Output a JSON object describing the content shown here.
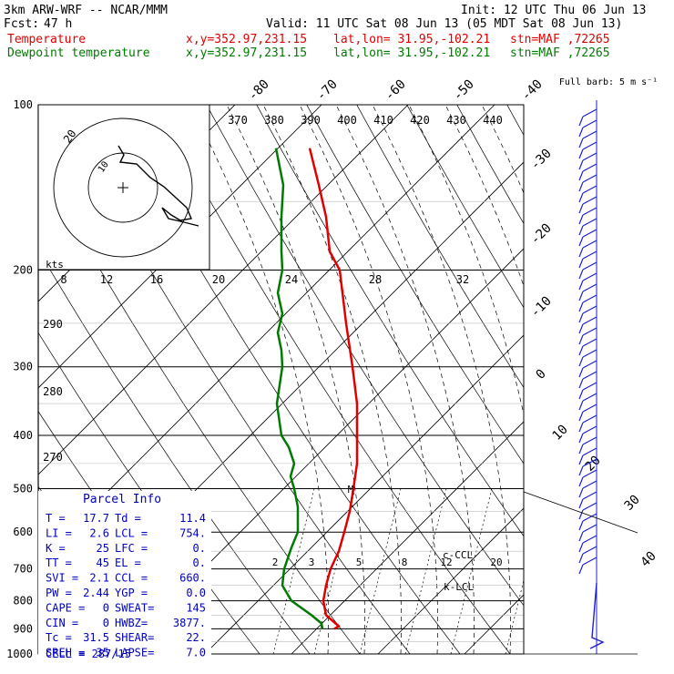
{
  "header": {
    "model": "3km ARW-WRF -- NCAR/MMM",
    "init": "Init: 12 UTC Thu 06 Jun 13",
    "fcst_label": "Fcst:",
    "fcst_value": "47 h",
    "valid": "Valid: 11 UTC Sat 08 Jun 13 (05 MDT Sat 08 Jun 13)",
    "temp_label": "Temperature",
    "dew_label": "Dewpoint temperature",
    "xy": "x,y=352.97,231.15",
    "latlon": "lat,lon= 31.95,-102.21",
    "stn": "stn=MAF ,72265"
  },
  "colors": {
    "temperature": "#e00000",
    "dewpoint": "#007a00",
    "barbs": "#2020d0",
    "grid": "#000000"
  },
  "chart_data": {
    "type": "line",
    "pressure_levels": [
      100,
      200,
      300,
      400,
      500,
      600,
      700,
      800,
      900,
      1000
    ],
    "theta_labels": [
      "370",
      "380",
      "390",
      "400",
      "410",
      "420",
      "430",
      "440"
    ],
    "isotherm_top_labels": [
      "-80",
      "-70",
      "-60",
      "-50",
      "-40"
    ],
    "isotherm_right_labels": [
      "-30",
      "-20",
      "-10",
      "0",
      "10",
      "20",
      "30",
      "40"
    ],
    "mixing_ratio_labels": [
      "2",
      "3",
      "5",
      "8",
      "12",
      "20"
    ],
    "hodograph": {
      "units_label": "kts",
      "ring_label": "20",
      "axis_labels": [
        "8",
        "12",
        "16",
        "20",
        "24",
        "28",
        "32"
      ]
    },
    "theta_left_labels": [
      "290",
      "280",
      "270"
    ],
    "barb_label": "Full barb: 5 m s⁻¹",
    "markers": {
      "lcl": "k-LCL",
      "ccl": "c-CCL",
      "m": "M"
    },
    "series": [
      {
        "name": "Temperature",
        "points": [
          [
            120,
            340
          ],
          [
            140,
            350
          ],
          [
            160,
            358
          ],
          [
            185,
            362
          ],
          [
            200,
            373
          ],
          [
            250,
            380
          ],
          [
            300,
            387
          ],
          [
            350,
            392
          ],
          [
            400,
            392
          ],
          [
            450,
            392
          ],
          [
            500,
            388
          ],
          [
            550,
            384
          ],
          [
            600,
            378
          ],
          [
            650,
            372
          ],
          [
            700,
            363
          ],
          [
            750,
            358
          ],
          [
            800,
            355
          ],
          [
            850,
            358
          ],
          [
            870,
            365
          ],
          [
            890,
            372
          ],
          [
            900,
            367
          ]
        ]
      },
      {
        "name": "Dewpoint temperature",
        "points": [
          [
            120,
            303
          ],
          [
            140,
            311
          ],
          [
            160,
            309
          ],
          [
            185,
            309
          ],
          [
            200,
            310
          ],
          [
            220,
            305
          ],
          [
            240,
            310
          ],
          [
            260,
            305
          ],
          [
            280,
            309
          ],
          [
            300,
            310
          ],
          [
            350,
            304
          ],
          [
            400,
            309
          ],
          [
            420,
            317
          ],
          [
            450,
            323
          ],
          [
            475,
            319
          ],
          [
            500,
            323
          ],
          [
            540,
            327
          ],
          [
            580,
            327
          ],
          [
            600,
            327
          ],
          [
            640,
            320
          ],
          [
            700,
            312
          ],
          [
            750,
            310
          ],
          [
            800,
            320
          ],
          [
            850,
            342
          ],
          [
            880,
            353
          ],
          [
            900,
            354
          ]
        ]
      }
    ]
  },
  "parcel_info": {
    "title": "Parcel Info",
    "rows": [
      [
        "T  =",
        "17.7",
        "Td =",
        "11.4"
      ],
      [
        "LI =",
        "2.6",
        "LCL =",
        "754."
      ],
      [
        "K  =",
        "25",
        "LFC =",
        "0."
      ],
      [
        "TT =",
        "45",
        "EL  =",
        "0."
      ],
      [
        "SVI =",
        "2.1",
        "CCL =",
        "660."
      ],
      [
        "PW =",
        "2.44",
        "YGP =",
        "0.0"
      ],
      [
        "CAPE =",
        "0",
        "SWEAT=",
        "145"
      ],
      [
        "CIN  =",
        "0",
        "HWBZ=",
        "3877."
      ],
      [
        "Tc =",
        "31.5",
        "SHEAR=",
        "22."
      ],
      [
        "SREH =",
        "35",
        "LAPSE=",
        "7.0"
      ]
    ],
    "cell": "CELL = 287/15"
  }
}
